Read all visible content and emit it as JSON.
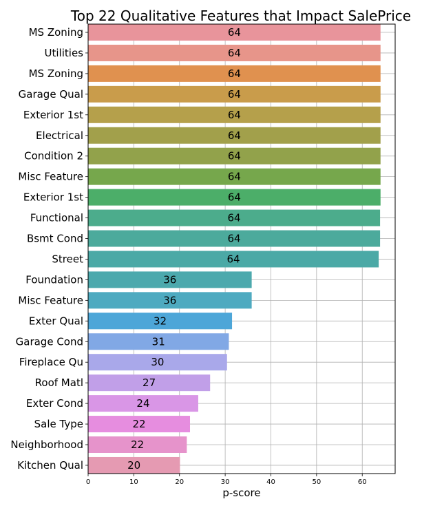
{
  "chart_data": {
    "type": "bar",
    "orientation": "horizontal",
    "title": "Top 22 Qualitative Features that Impact SalePrice",
    "xlabel": "p-score",
    "ylabel": "",
    "xlim": [
      0,
      67.2
    ],
    "xticks": [
      0,
      10,
      20,
      30,
      40,
      50,
      60
    ],
    "grid": true,
    "categories": [
      "MS Zoning",
      "Utilities",
      "MS Zoning",
      "Garage Qual",
      "Exterior 1st",
      "Electrical",
      "Condition 2",
      "Misc Feature",
      "Exterior 1st",
      "Functional",
      "Bsmt Cond",
      "Street",
      "Foundation",
      "Misc Feature",
      "Exter Qual",
      "Garage Cond",
      "Fireplace Qu",
      "Roof Matl",
      "Exter Cond",
      "Sale Type",
      "Neighborhood",
      "Kitchen Qual"
    ],
    "values": [
      64.0,
      64.0,
      64.0,
      64.0,
      64.0,
      64.0,
      64.0,
      64.0,
      64.0,
      63.9,
      63.9,
      63.6,
      35.8,
      35.8,
      31.5,
      30.8,
      30.4,
      26.7,
      24.1,
      22.3,
      21.6,
      20.1
    ],
    "data_labels": [
      "64",
      "64",
      "64",
      "64",
      "64",
      "64",
      "64",
      "64",
      "64",
      "64",
      "64",
      "64",
      "36",
      "36",
      "32",
      "31",
      "30",
      "27",
      "24",
      "22",
      "22",
      "20"
    ],
    "colors": [
      "#e8949b",
      "#e7958a",
      "#e0914f",
      "#c99c4b",
      "#b5a04b",
      "#a2a04b",
      "#92a24b",
      "#76a74c",
      "#4cae69",
      "#4cac8c",
      "#4caa9c",
      "#4ba9a6",
      "#4ca9ad",
      "#4eaac0",
      "#4da6d8",
      "#81a8e5",
      "#a9a8ea",
      "#c19fe8",
      "#d996e6",
      "#e68ddf",
      "#e693cb",
      "#e59ab2"
    ]
  }
}
